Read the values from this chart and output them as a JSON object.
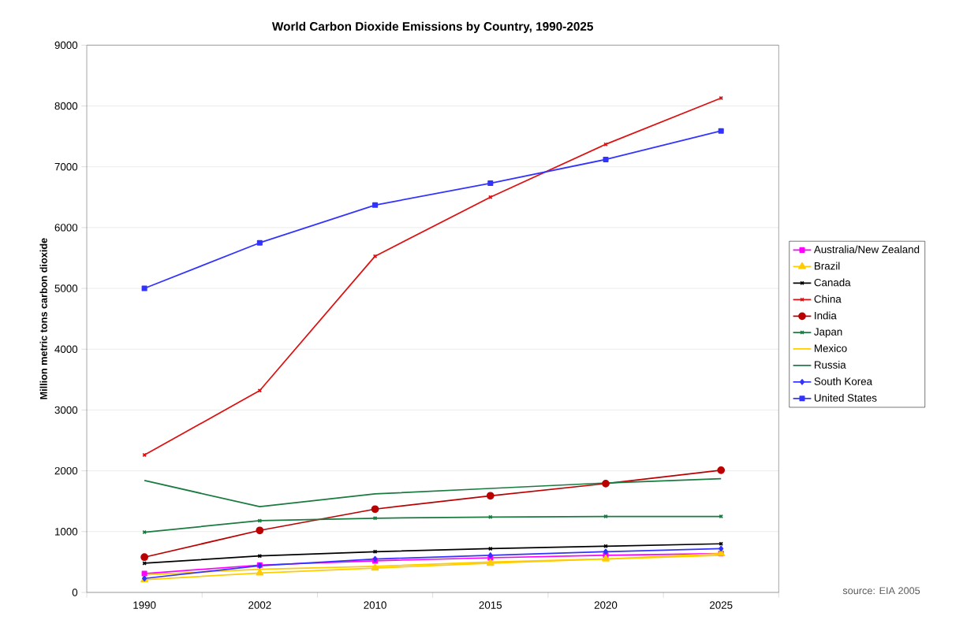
{
  "chart_data": {
    "type": "line",
    "title": "World Carbon Dioxide Emissions by Country, 1990-2025",
    "ylabel": "Million metric tons carbon dioxide",
    "categories": [
      "1990",
      "2002",
      "2010",
      "2015",
      "2020",
      "2025"
    ],
    "ylim": [
      0,
      9000
    ],
    "yticks": [
      0,
      1000,
      2000,
      3000,
      4000,
      5000,
      6000,
      7000,
      8000,
      9000
    ],
    "grid": "y",
    "legend": "right",
    "annotations": [
      "source: EIA 2005"
    ],
    "series": [
      {
        "name": "Australia/New Zealand",
        "color": "#ff00ff",
        "marker": "square",
        "values": [
          310,
          450,
          520,
          570,
          610,
          640
        ]
      },
      {
        "name": "Brazil",
        "color": "#ffcc00",
        "marker": "triangle",
        "values": [
          210,
          320,
          400,
          480,
          550,
          640
        ]
      },
      {
        "name": "Canada",
        "color": "#000000",
        "marker": "cross",
        "values": [
          480,
          600,
          670,
          720,
          760,
          800
        ]
      },
      {
        "name": "China",
        "color": "#dd1111",
        "marker": "cross",
        "values": [
          2260,
          3320,
          5530,
          6500,
          7370,
          8130
        ]
      },
      {
        "name": "India",
        "color": "#bb0000",
        "marker": "circle",
        "values": [
          580,
          1020,
          1370,
          1590,
          1790,
          2010
        ]
      },
      {
        "name": "Japan",
        "color": "#1a7a40",
        "marker": "cross",
        "values": [
          990,
          1180,
          1220,
          1240,
          1250,
          1250
        ]
      },
      {
        "name": "Mexico",
        "color": "#ffcc00",
        "values": [
          290,
          380,
          430,
          500,
          550,
          610
        ]
      },
      {
        "name": "Russia",
        "color": "#1a7a40",
        "marker": "none",
        "values": [
          1840,
          1410,
          1620,
          1710,
          1800,
          1870
        ]
      },
      {
        "name": "South Korea",
        "color": "#3333ff",
        "marker": "diamond",
        "values": [
          230,
          440,
          550,
          610,
          670,
          720
        ]
      },
      {
        "name": "United States",
        "color": "#3333ff",
        "marker": "square",
        "values": [
          5000,
          5750,
          6370,
          6730,
          7120,
          7590
        ]
      }
    ]
  }
}
